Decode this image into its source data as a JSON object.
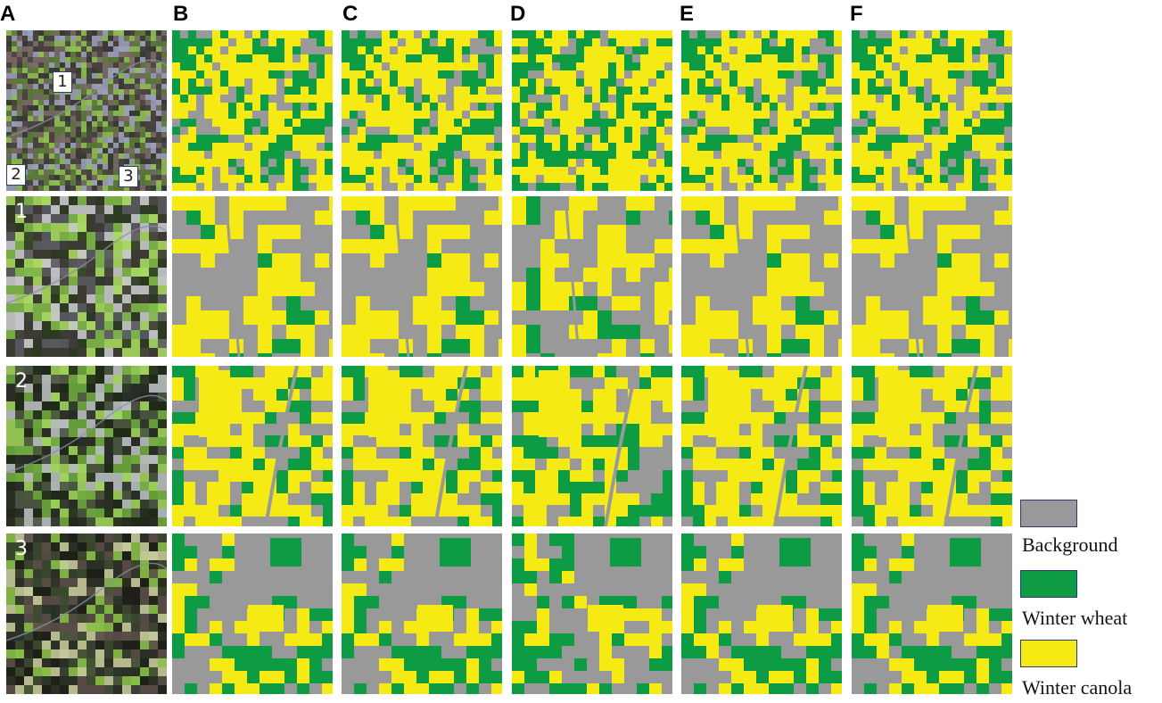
{
  "columns": [
    "A",
    "B",
    "C",
    "D",
    "E",
    "F"
  ],
  "row_numbers": [
    "1",
    "2",
    "3"
  ],
  "overview_markers": [
    "1",
    "2",
    "3"
  ],
  "legend": [
    {
      "label": "Background",
      "color": "#999999"
    },
    {
      "label": "Winter wheat",
      "color": "#0d9b44"
    },
    {
      "label": "Winter canola",
      "color": "#f5ea14"
    }
  ],
  "colors": {
    "background": "#999999",
    "wheat": "#0d9b44",
    "canola": "#f5ea14"
  }
}
